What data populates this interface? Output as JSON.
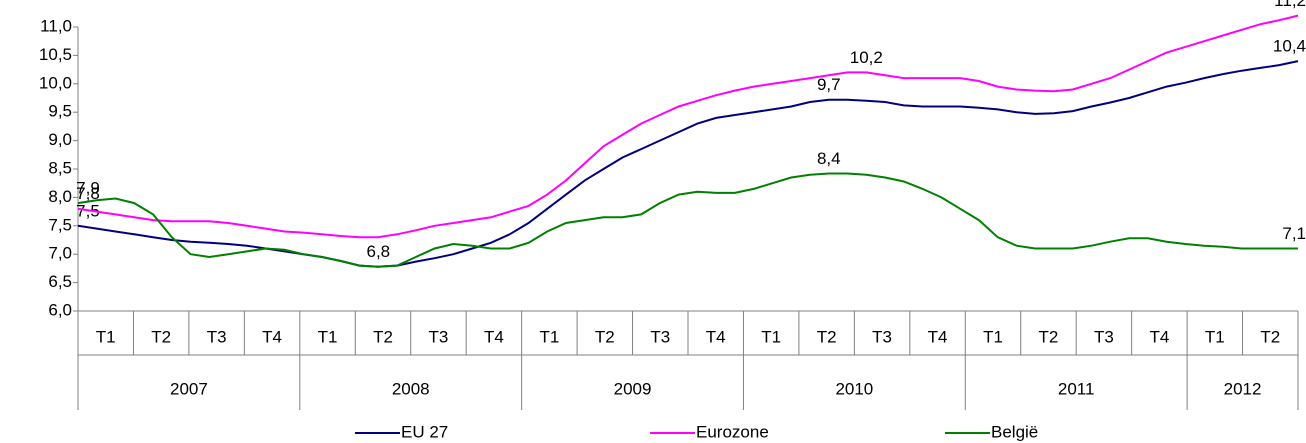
{
  "chart_data": {
    "type": "line",
    "ylim": [
      6,
      11
    ],
    "yticks": [
      {
        "value": 6,
        "label": "6,0"
      },
      {
        "value": 6.5,
        "label": "6,5"
      },
      {
        "value": 7,
        "label": "7,0"
      },
      {
        "value": 7.5,
        "label": "7,5"
      },
      {
        "value": 8,
        "label": "8,0"
      },
      {
        "value": 8.5,
        "label": "8,5"
      },
      {
        "value": 9,
        "label": "9,0"
      },
      {
        "value": 9.5,
        "label": "9,5"
      },
      {
        "value": 10,
        "label": "10,0"
      },
      {
        "value": 10.5,
        "label": "10,5"
      },
      {
        "value": 11,
        "label": "11,0"
      }
    ],
    "years": [
      {
        "year": "2007",
        "quarters": [
          "T1",
          "T2",
          "T3",
          "T4"
        ]
      },
      {
        "year": "2008",
        "quarters": [
          "T1",
          "T2",
          "T3",
          "T4"
        ]
      },
      {
        "year": "2009",
        "quarters": [
          "T1",
          "T2",
          "T3",
          "T4"
        ]
      },
      {
        "year": "2010",
        "quarters": [
          "T1",
          "T2",
          "T3",
          "T4"
        ]
      },
      {
        "year": "2011",
        "quarters": [
          "T1",
          "T2",
          "T3",
          "T4"
        ]
      },
      {
        "year": "2012",
        "quarters": [
          "T1",
          "T2"
        ]
      }
    ],
    "series": [
      {
        "name": "EU 27",
        "color": "#000080",
        "values": [
          7.5,
          7.45,
          7.4,
          7.35,
          7.3,
          7.25,
          7.22,
          7.2,
          7.18,
          7.15,
          7.1,
          7.05,
          7.0,
          6.95,
          6.88,
          6.8,
          6.78,
          6.8,
          6.87,
          6.93,
          7.0,
          7.1,
          7.2,
          7.35,
          7.55,
          7.8,
          8.05,
          8.3,
          8.5,
          8.7,
          8.85,
          9.0,
          9.15,
          9.3,
          9.4,
          9.45,
          9.5,
          9.55,
          9.6,
          9.68,
          9.72,
          9.72,
          9.7,
          9.68,
          9.62,
          9.6,
          9.6,
          9.6,
          9.58,
          9.55,
          9.5,
          9.47,
          9.48,
          9.52,
          9.6,
          9.67,
          9.75,
          9.85,
          9.95,
          10.02,
          10.1,
          10.17,
          10.23,
          10.28,
          10.33,
          10.4
        ],
        "value_labels": [
          "7,5",
          null,
          null,
          null,
          null,
          null,
          null,
          null,
          null,
          null,
          null,
          null,
          null,
          null,
          null,
          null,
          "6,8",
          null,
          null,
          null,
          null,
          null,
          null,
          null,
          null,
          null,
          null,
          null,
          null,
          null,
          null,
          null,
          null,
          null,
          null,
          null,
          null,
          null,
          null,
          null,
          "9,7",
          null,
          null,
          null,
          null,
          null,
          null,
          null,
          null,
          null,
          null,
          null,
          null,
          null,
          null,
          null,
          null,
          null,
          null,
          null,
          null,
          null,
          null,
          null,
          null,
          "10,4"
        ]
      },
      {
        "name": "Eurozone",
        "color": "#ff00ff",
        "values": [
          7.8,
          7.75,
          7.7,
          7.65,
          7.6,
          7.58,
          7.58,
          7.58,
          7.55,
          7.5,
          7.45,
          7.4,
          7.38,
          7.35,
          7.32,
          7.3,
          7.3,
          7.35,
          7.42,
          7.5,
          7.55,
          7.6,
          7.65,
          7.75,
          7.85,
          8.05,
          8.3,
          8.6,
          8.9,
          9.1,
          9.3,
          9.45,
          9.6,
          9.7,
          9.8,
          9.88,
          9.95,
          10.0,
          10.05,
          10.1,
          10.15,
          10.2,
          10.2,
          10.15,
          10.1,
          10.1,
          10.1,
          10.1,
          10.05,
          9.95,
          9.9,
          9.88,
          9.87,
          9.9,
          10.0,
          10.1,
          10.25,
          10.4,
          10.55,
          10.65,
          10.75,
          10.85,
          10.95,
          11.05,
          11.12,
          11.2
        ],
        "value_labels": [
          "7,8",
          null,
          null,
          null,
          null,
          null,
          null,
          null,
          null,
          null,
          null,
          null,
          null,
          null,
          null,
          null,
          null,
          null,
          null,
          null,
          null,
          null,
          null,
          null,
          null,
          null,
          null,
          null,
          null,
          null,
          null,
          null,
          null,
          null,
          null,
          null,
          null,
          null,
          null,
          null,
          null,
          null,
          "10,2",
          null,
          null,
          null,
          null,
          null,
          null,
          null,
          null,
          null,
          null,
          null,
          null,
          null,
          null,
          null,
          null,
          null,
          null,
          null,
          null,
          null,
          null,
          "11,2"
        ]
      },
      {
        "name": "België",
        "color": "#008000",
        "values": [
          7.9,
          7.95,
          7.98,
          7.9,
          7.7,
          7.3,
          7.0,
          6.95,
          7.0,
          7.05,
          7.1,
          7.08,
          7.0,
          6.95,
          6.88,
          6.8,
          6.78,
          6.8,
          6.95,
          7.1,
          7.18,
          7.15,
          7.1,
          7.1,
          7.2,
          7.4,
          7.55,
          7.6,
          7.65,
          7.65,
          7.7,
          7.9,
          8.05,
          8.1,
          8.08,
          8.08,
          8.15,
          8.25,
          8.35,
          8.4,
          8.42,
          8.42,
          8.4,
          8.35,
          8.28,
          8.15,
          8.0,
          7.8,
          7.6,
          7.3,
          7.15,
          7.1,
          7.1,
          7.1,
          7.15,
          7.22,
          7.28,
          7.28,
          7.22,
          7.18,
          7.15,
          7.13,
          7.1,
          7.1,
          7.1,
          7.1
        ],
        "value_labels": [
          "7,9",
          null,
          null,
          null,
          null,
          null,
          null,
          null,
          null,
          null,
          null,
          null,
          null,
          null,
          null,
          null,
          null,
          null,
          null,
          null,
          null,
          null,
          null,
          null,
          null,
          null,
          null,
          null,
          null,
          null,
          null,
          null,
          null,
          null,
          null,
          null,
          null,
          null,
          null,
          null,
          "8,4",
          null,
          null,
          null,
          null,
          null,
          null,
          null,
          null,
          null,
          null,
          null,
          null,
          null,
          null,
          null,
          null,
          null,
          null,
          null,
          null,
          null,
          null,
          null,
          null,
          "7,1"
        ]
      }
    ]
  }
}
